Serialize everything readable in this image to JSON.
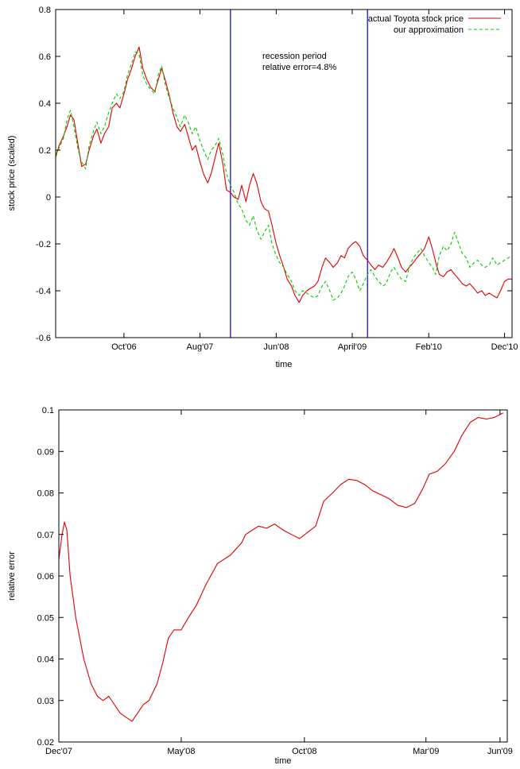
{
  "colors": {
    "actual": "#e00000",
    "approx": "#00cc00",
    "recession": "#0000cc",
    "axes": "#000000"
  },
  "chart_data": [
    {
      "type": "line",
      "xlabel": "time",
      "ylabel": "stock price (scaled)",
      "ylim": [
        -0.6,
        0.8
      ],
      "yticks": [
        -0.6,
        -0.4,
        -0.2,
        0,
        0.2,
        0.4,
        0.6,
        0.8
      ],
      "yticklabels": [
        "-0.6",
        "-0.4",
        "-0.2",
        "0",
        "0.2",
        "0.4",
        "0.6",
        "0.8"
      ],
      "xlim": [
        "2006-01-01",
        "2010-12-31"
      ],
      "xticks": [
        "2006-10-01",
        "2007-08-01",
        "2008-06-01",
        "2009-04-01",
        "2010-02-01",
        "2010-12-01"
      ],
      "xticklabels": [
        "Oct'06",
        "Aug'07",
        "Jun'08",
        "April'09",
        "Feb'10",
        "Dec'10"
      ],
      "grid": false,
      "legend_position": "top-right",
      "vlines": [
        "2007-12-01",
        "2009-06-01"
      ],
      "annotation": [
        "recession period",
        "relative error=4.8%"
      ],
      "series": [
        {
          "name": "actual Toyota stock price",
          "style": "solid",
          "x": [
            "2006-01-01",
            "2006-01-15",
            "2006-02-01",
            "2006-02-15",
            "2006-03-01",
            "2006-03-15",
            "2006-04-01",
            "2006-04-15",
            "2006-05-01",
            "2006-05-15",
            "2006-06-01",
            "2006-06-15",
            "2006-07-01",
            "2006-07-15",
            "2006-08-01",
            "2006-08-15",
            "2006-09-01",
            "2006-09-15",
            "2006-10-01",
            "2006-10-15",
            "2006-11-01",
            "2006-11-15",
            "2006-12-01",
            "2006-12-15",
            "2007-01-01",
            "2007-01-15",
            "2007-02-01",
            "2007-02-15",
            "2007-03-01",
            "2007-03-15",
            "2007-04-01",
            "2007-04-15",
            "2007-05-01",
            "2007-05-15",
            "2007-06-01",
            "2007-06-15",
            "2007-07-01",
            "2007-07-15",
            "2007-08-01",
            "2007-08-15",
            "2007-09-01",
            "2007-09-15",
            "2007-10-01",
            "2007-10-15",
            "2007-11-01",
            "2007-11-15",
            "2007-12-01",
            "2007-12-15",
            "2008-01-01",
            "2008-01-15",
            "2008-02-01",
            "2008-02-15",
            "2008-03-01",
            "2008-03-15",
            "2008-04-01",
            "2008-04-15",
            "2008-05-01",
            "2008-05-15",
            "2008-06-01",
            "2008-06-15",
            "2008-07-01",
            "2008-07-15",
            "2008-08-01",
            "2008-08-15",
            "2008-09-01",
            "2008-09-15",
            "2008-10-01",
            "2008-10-15",
            "2008-11-01",
            "2008-11-15",
            "2008-12-01",
            "2008-12-15",
            "2009-01-01",
            "2009-01-15",
            "2009-02-01",
            "2009-02-15",
            "2009-03-01",
            "2009-03-15",
            "2009-04-01",
            "2009-04-15",
            "2009-05-01",
            "2009-05-15",
            "2009-06-01",
            "2009-06-15",
            "2009-07-01",
            "2009-07-15",
            "2009-08-01",
            "2009-08-15",
            "2009-09-01",
            "2009-09-15",
            "2009-10-01",
            "2009-10-15",
            "2009-11-01",
            "2009-11-15",
            "2009-12-01",
            "2009-12-15",
            "2010-01-01",
            "2010-01-15",
            "2010-02-01",
            "2010-02-15",
            "2010-03-01",
            "2010-03-15",
            "2010-04-01",
            "2010-04-15",
            "2010-05-01",
            "2010-05-15",
            "2010-06-01",
            "2010-06-15",
            "2010-07-01",
            "2010-07-15",
            "2010-08-01",
            "2010-08-15",
            "2010-09-01",
            "2010-09-15",
            "2010-10-01",
            "2010-10-15",
            "2010-11-01",
            "2010-11-15",
            "2010-12-01",
            "2010-12-15",
            "2010-12-31"
          ],
          "y": [
            0.17,
            0.22,
            0.26,
            0.3,
            0.35,
            0.33,
            0.22,
            0.13,
            0.14,
            0.2,
            0.26,
            0.29,
            0.23,
            0.27,
            0.3,
            0.38,
            0.4,
            0.38,
            0.44,
            0.5,
            0.55,
            0.6,
            0.64,
            0.55,
            0.5,
            0.47,
            0.45,
            0.5,
            0.55,
            0.5,
            0.43,
            0.36,
            0.3,
            0.28,
            0.31,
            0.26,
            0.2,
            0.22,
            0.15,
            0.1,
            0.06,
            0.1,
            0.17,
            0.23,
            0.14,
            0.03,
            0.02,
            0.0,
            -0.01,
            0.05,
            -0.02,
            0.05,
            0.1,
            0.06,
            -0.02,
            -0.05,
            -0.06,
            -0.12,
            -0.2,
            -0.25,
            -0.3,
            -0.35,
            -0.38,
            -0.42,
            -0.45,
            -0.42,
            -0.4,
            -0.39,
            -0.38,
            -0.36,
            -0.3,
            -0.26,
            -0.28,
            -0.3,
            -0.28,
            -0.25,
            -0.26,
            -0.22,
            -0.2,
            -0.19,
            -0.21,
            -0.25,
            -0.27,
            -0.29,
            -0.31,
            -0.29,
            -0.3,
            -0.28,
            -0.25,
            -0.22,
            -0.26,
            -0.3,
            -0.32,
            -0.3,
            -0.28,
            -0.26,
            -0.24,
            -0.22,
            -0.17,
            -0.22,
            -0.28,
            -0.33,
            -0.34,
            -0.32,
            -0.31,
            -0.33,
            -0.35,
            -0.37,
            -0.38,
            -0.37,
            -0.39,
            -0.41,
            -0.4,
            -0.42,
            -0.41,
            -0.42,
            -0.43,
            -0.4,
            -0.36,
            -0.35,
            -0.35
          ]
        },
        {
          "name": "our approximation",
          "style": "dashed",
          "x": [
            "2006-01-01",
            "2006-01-15",
            "2006-02-01",
            "2006-02-15",
            "2006-03-01",
            "2006-03-15",
            "2006-04-01",
            "2006-04-15",
            "2006-05-01",
            "2006-05-15",
            "2006-06-01",
            "2006-06-15",
            "2006-07-01",
            "2006-07-15",
            "2006-08-01",
            "2006-08-15",
            "2006-09-01",
            "2006-09-15",
            "2006-10-01",
            "2006-10-15",
            "2006-11-01",
            "2006-11-15",
            "2006-12-01",
            "2006-12-15",
            "2007-01-01",
            "2007-01-15",
            "2007-02-01",
            "2007-02-15",
            "2007-03-01",
            "2007-03-15",
            "2007-04-01",
            "2007-04-15",
            "2007-05-01",
            "2007-05-15",
            "2007-06-01",
            "2007-06-15",
            "2007-07-01",
            "2007-07-15",
            "2007-08-01",
            "2007-08-15",
            "2007-09-01",
            "2007-09-15",
            "2007-10-01",
            "2007-10-15",
            "2007-11-01",
            "2007-11-15",
            "2007-12-01",
            "2007-12-15",
            "2008-01-01",
            "2008-01-15",
            "2008-02-01",
            "2008-02-15",
            "2008-03-01",
            "2008-03-15",
            "2008-04-01",
            "2008-04-15",
            "2008-05-01",
            "2008-05-15",
            "2008-06-01",
            "2008-06-15",
            "2008-07-01",
            "2008-07-15",
            "2008-08-01",
            "2008-08-15",
            "2008-09-01",
            "2008-09-15",
            "2008-10-01",
            "2008-10-15",
            "2008-11-01",
            "2008-11-15",
            "2008-12-01",
            "2008-12-15",
            "2009-01-01",
            "2009-01-15",
            "2009-02-01",
            "2009-02-15",
            "2009-03-01",
            "2009-03-15",
            "2009-04-01",
            "2009-04-15",
            "2009-05-01",
            "2009-05-15",
            "2009-06-01",
            "2009-06-15",
            "2009-07-01",
            "2009-07-15",
            "2009-08-01",
            "2009-08-15",
            "2009-09-01",
            "2009-09-15",
            "2009-10-01",
            "2009-10-15",
            "2009-11-01",
            "2009-11-15",
            "2009-12-01",
            "2009-12-15",
            "2010-01-01",
            "2010-01-15",
            "2010-02-01",
            "2010-02-15",
            "2010-03-01",
            "2010-03-15",
            "2010-04-01",
            "2010-04-15",
            "2010-05-01",
            "2010-05-15",
            "2010-06-01",
            "2010-06-15",
            "2010-07-01",
            "2010-07-15",
            "2010-08-01",
            "2010-08-15",
            "2010-09-01",
            "2010-09-15",
            "2010-10-01",
            "2010-10-15",
            "2010-11-01",
            "2010-11-15",
            "2010-12-01",
            "2010-12-15",
            "2010-12-31"
          ],
          "y": [
            0.18,
            0.21,
            0.25,
            0.33,
            0.37,
            0.3,
            0.2,
            0.15,
            0.12,
            0.22,
            0.28,
            0.32,
            0.27,
            0.3,
            0.36,
            0.4,
            0.44,
            0.42,
            0.45,
            0.52,
            0.57,
            0.62,
            0.61,
            0.52,
            0.48,
            0.46,
            0.44,
            0.52,
            0.56,
            0.48,
            0.42,
            0.38,
            0.34,
            0.3,
            0.35,
            0.32,
            0.27,
            0.3,
            0.24,
            0.2,
            0.16,
            0.2,
            0.22,
            0.25,
            0.18,
            0.1,
            0.05,
            0.02,
            -0.03,
            -0.05,
            -0.1,
            -0.12,
            -0.08,
            -0.14,
            -0.18,
            -0.15,
            -0.12,
            -0.2,
            -0.25,
            -0.28,
            -0.3,
            -0.33,
            -0.36,
            -0.4,
            -0.42,
            -0.4,
            -0.41,
            -0.42,
            -0.43,
            -0.42,
            -0.38,
            -0.36,
            -0.4,
            -0.44,
            -0.43,
            -0.41,
            -0.38,
            -0.34,
            -0.32,
            -0.35,
            -0.4,
            -0.37,
            -0.33,
            -0.31,
            -0.34,
            -0.36,
            -0.38,
            -0.37,
            -0.32,
            -0.3,
            -0.33,
            -0.35,
            -0.36,
            -0.3,
            -0.26,
            -0.24,
            -0.22,
            -0.25,
            -0.28,
            -0.3,
            -0.33,
            -0.25,
            -0.21,
            -0.23,
            -0.2,
            -0.15,
            -0.2,
            -0.24,
            -0.26,
            -0.3,
            -0.28,
            -0.27,
            -0.29,
            -0.3,
            -0.29,
            -0.26,
            -0.29,
            -0.28,
            -0.27,
            -0.26,
            -0.25
          ]
        }
      ]
    },
    {
      "type": "line",
      "xlabel": "time",
      "ylabel": "relative error",
      "ylim": [
        0.02,
        0.1
      ],
      "yticks": [
        0.02,
        0.03,
        0.04,
        0.05,
        0.06,
        0.07,
        0.08,
        0.09,
        0.1
      ],
      "yticklabels": [
        "0.02",
        "0.03",
        "0.04",
        "0.05",
        "0.06",
        "0.07",
        "0.08",
        "0.09",
        "0.1"
      ],
      "xlim": [
        "2007-12-01",
        "2009-06-10"
      ],
      "xticks": [
        "2007-12-01",
        "2008-05-01",
        "2008-10-01",
        "2009-03-01",
        "2009-06-01"
      ],
      "xticklabels": [
        "Dec'07",
        "May'08",
        "Oct'08",
        "Mar'09",
        "Jun'09"
      ],
      "grid": false,
      "series": [
        {
          "x": [
            "2007-12-01",
            "2007-12-05",
            "2007-12-08",
            "2007-12-11",
            "2007-12-15",
            "2007-12-22",
            "2008-01-01",
            "2008-01-10",
            "2008-01-18",
            "2008-01-25",
            "2008-02-01",
            "2008-02-08",
            "2008-02-15",
            "2008-02-22",
            "2008-03-01",
            "2008-03-08",
            "2008-03-15",
            "2008-03-22",
            "2008-04-01",
            "2008-04-08",
            "2008-04-15",
            "2008-04-22",
            "2008-05-01",
            "2008-05-10",
            "2008-05-20",
            "2008-06-01",
            "2008-06-15",
            "2008-07-01",
            "2008-07-15",
            "2008-07-20",
            "2008-07-28",
            "2008-08-05",
            "2008-08-15",
            "2008-08-25",
            "2008-09-05",
            "2008-09-15",
            "2008-09-25",
            "2008-10-05",
            "2008-10-15",
            "2008-10-25",
            "2008-11-05",
            "2008-11-15",
            "2008-11-25",
            "2008-12-05",
            "2008-12-15",
            "2008-12-25",
            "2009-01-05",
            "2009-01-15",
            "2009-01-25",
            "2009-02-05",
            "2009-02-15",
            "2009-02-25",
            "2009-03-05",
            "2009-03-15",
            "2009-03-25",
            "2009-04-05",
            "2009-04-15",
            "2009-04-25",
            "2009-05-05",
            "2009-05-15",
            "2009-05-25",
            "2009-06-05"
          ],
          "y": [
            0.064,
            0.07,
            0.073,
            0.071,
            0.06,
            0.05,
            0.04,
            0.034,
            0.031,
            0.03,
            0.031,
            0.029,
            0.027,
            0.026,
            0.025,
            0.027,
            0.029,
            0.03,
            0.034,
            0.039,
            0.045,
            0.047,
            0.047,
            0.05,
            0.053,
            0.058,
            0.063,
            0.065,
            0.068,
            0.07,
            0.071,
            0.072,
            0.0715,
            0.0725,
            0.071,
            0.07,
            0.069,
            0.0705,
            0.072,
            0.078,
            0.08,
            0.082,
            0.0833,
            0.083,
            0.082,
            0.0805,
            0.0795,
            0.0785,
            0.077,
            0.0765,
            0.0775,
            0.081,
            0.0845,
            0.0852,
            0.087,
            0.09,
            0.094,
            0.097,
            0.0982,
            0.0978,
            0.0982,
            0.0993
          ]
        }
      ]
    }
  ]
}
